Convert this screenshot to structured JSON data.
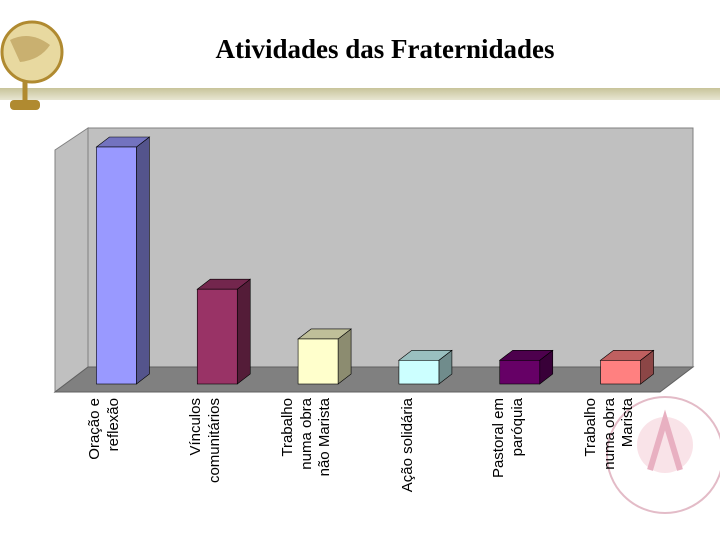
{
  "chart_data": {
    "type": "bar3d",
    "title": "Atividades das Fraternidades",
    "categories": [
      "Oração e reflexão",
      "Vínculos comunitários",
      "Trabalho numa obra não Marista",
      "Ação solidária",
      "Pastoral em paróquia",
      "Trabalho numa obra Marista"
    ],
    "values": [
      100,
      40,
      19,
      10,
      10,
      10
    ],
    "colors": [
      "#9999ff",
      "#993366",
      "#ffffcc",
      "#ccffff",
      "#660066",
      "#ff8080"
    ],
    "ylim": [
      0,
      100
    ]
  }
}
